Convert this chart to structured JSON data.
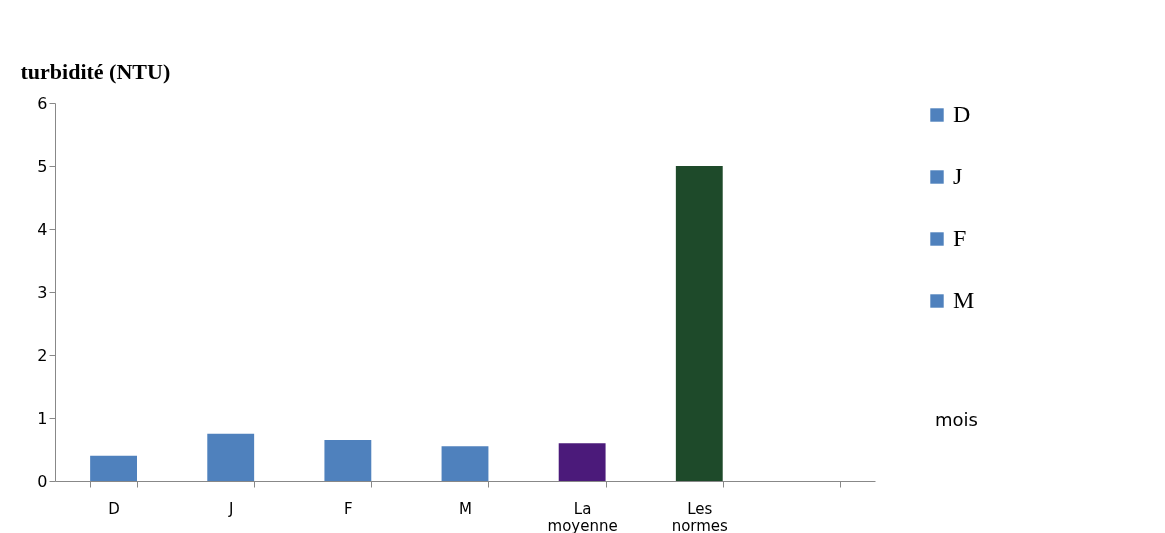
{
  "chart_data": {
    "type": "bar",
    "ylabel": "turbidité (NTU)",
    "annotations": [
      "mois"
    ],
    "categories": [
      "D",
      "J",
      "F",
      "M",
      "La moyenne",
      "Les normes",
      null
    ],
    "stacked": true,
    "series": [
      {
        "name": "D",
        "color": "#4f81bd",
        "values": [
          0.4,
          null,
          null,
          null,
          null,
          null,
          null
        ]
      },
      {
        "name": "J",
        "color": "#4f81bd",
        "values": [
          null,
          0.75,
          null,
          null,
          null,
          null,
          null
        ]
      },
      {
        "name": "F",
        "color": "#4f81bd",
        "values": [
          null,
          null,
          0.65,
          null,
          null,
          null,
          null
        ]
      },
      {
        "name": "M",
        "color": "#4f81bd",
        "values": [
          null,
          null,
          null,
          0.55,
          null,
          null,
          null
        ]
      },
      {
        "color": "#4b1a7a",
        "values": [
          null,
          null,
          null,
          null,
          0.6,
          null,
          null
        ]
      },
      {
        "color": "#1e4a2a",
        "values": [
          null,
          null,
          null,
          null,
          null,
          5,
          null
        ]
      }
    ],
    "ylim": [
      0,
      6
    ],
    "yticks": [
      0,
      1,
      2,
      3,
      4,
      5,
      6
    ],
    "grid": false,
    "legend": "right"
  }
}
